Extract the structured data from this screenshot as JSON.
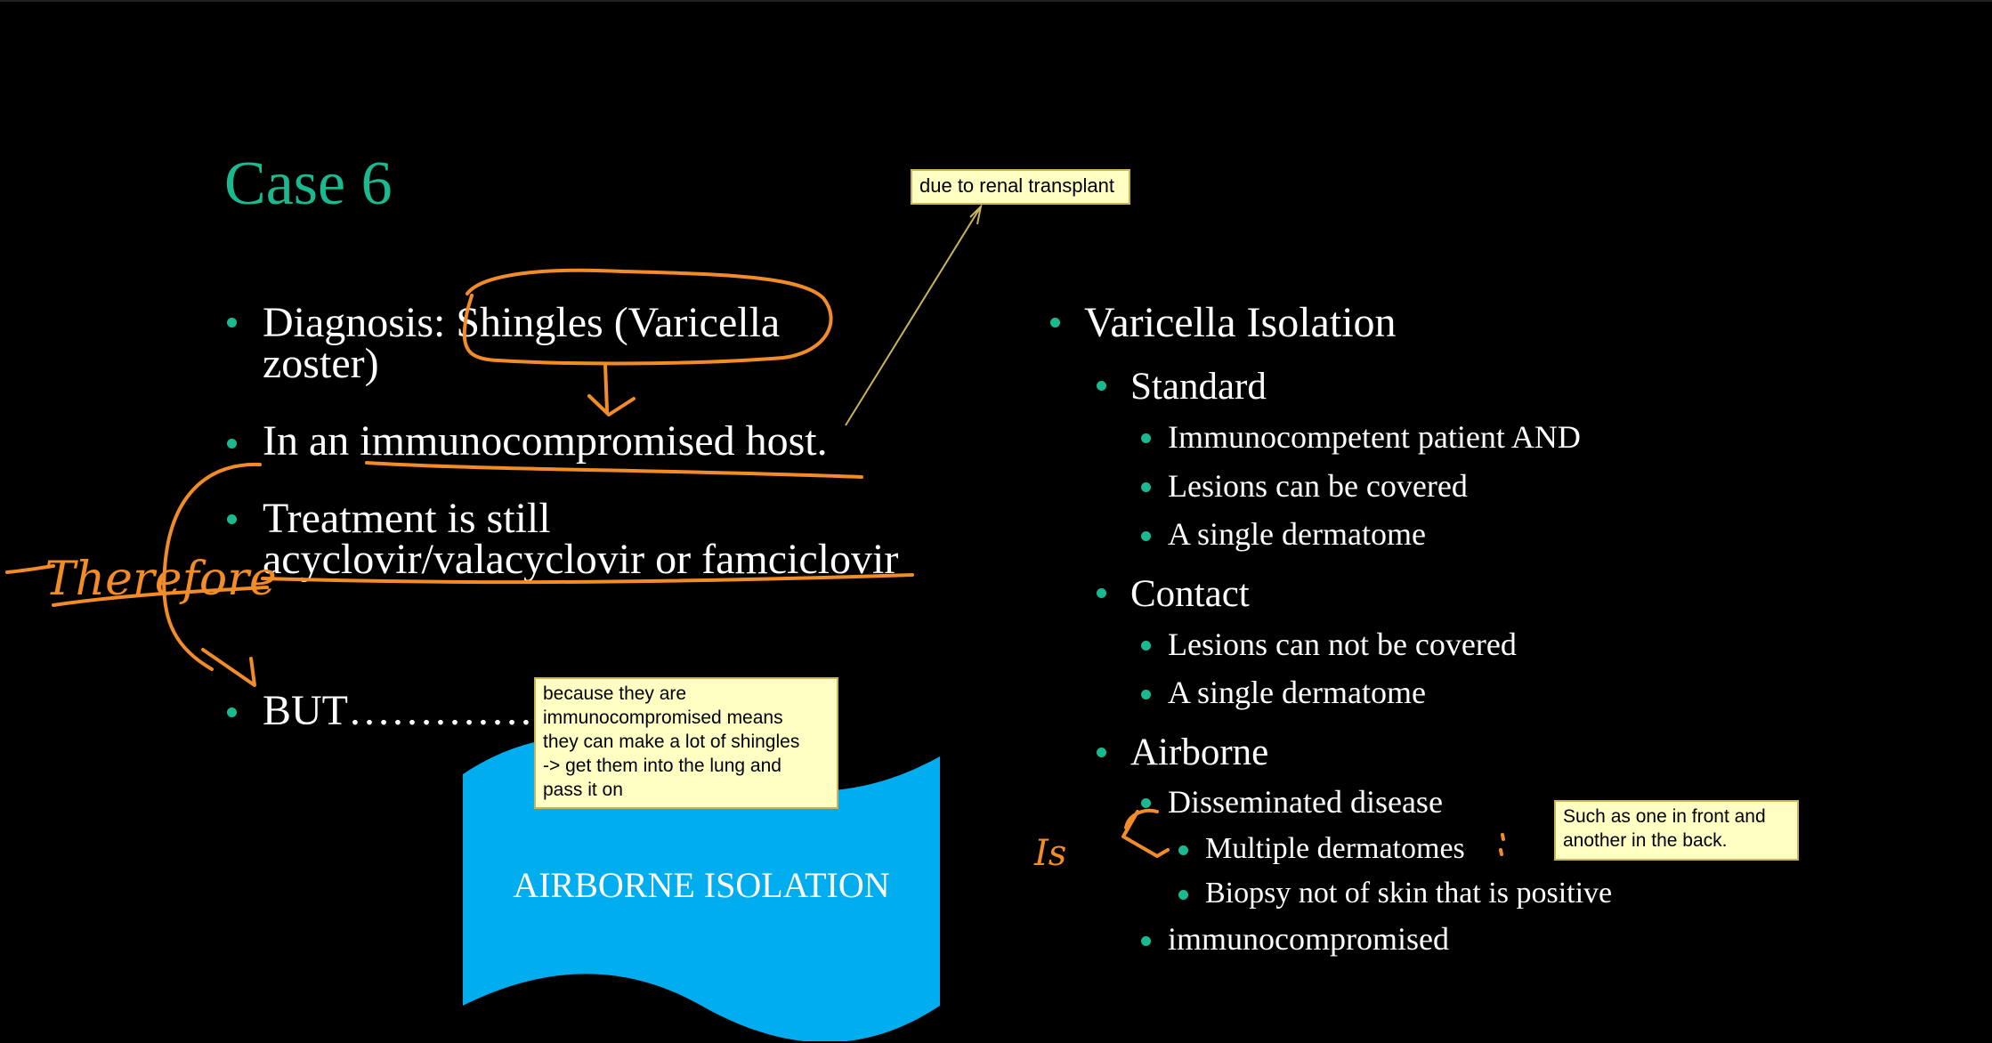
{
  "slide": {
    "title": "Case 6",
    "left_points": [
      {
        "line1": "Diagnosis: Shingles (Varicella",
        "line2": "zoster)"
      },
      {
        "line1": "In an immunocompromised host."
      },
      {
        "line1": "Treatment is still",
        "line2": "acyclovir/valacyclovir or famciclovir"
      },
      {
        "line1": "BUT……………"
      }
    ],
    "right": {
      "heading": "Varicella Isolation",
      "standard": {
        "label": "Standard",
        "items": [
          "Immunocompetent patient AND",
          "Lesions can be covered",
          "A single dermatome"
        ]
      },
      "contact": {
        "label": "Contact",
        "items": [
          "Lesions can not be covered",
          "A single dermatome"
        ]
      },
      "airborne": {
        "label": "Airborne",
        "disseminated": "Disseminated disease",
        "sub_items": [
          "Multiple dermatomes",
          "Biopsy not of skin that is positive"
        ],
        "immuno": "immunocompromised"
      }
    },
    "banner_text": "AIRBORNE ISOLATION",
    "colors": {
      "accent": "#1bb98f",
      "banner": "#00aeef",
      "ink": "#f28c28"
    }
  },
  "notes": {
    "renal": "due to renal transplant",
    "because": [
      "because they are",
      "immunocompromised means",
      "they can make a lot of shingles",
      "-> get them into the lung and",
      "pass it on"
    ],
    "front_back": [
      "Such as one in front and",
      "another in the back."
    ]
  },
  "handwriting": {
    "therefore": "Therefore",
    "is": "Is"
  }
}
